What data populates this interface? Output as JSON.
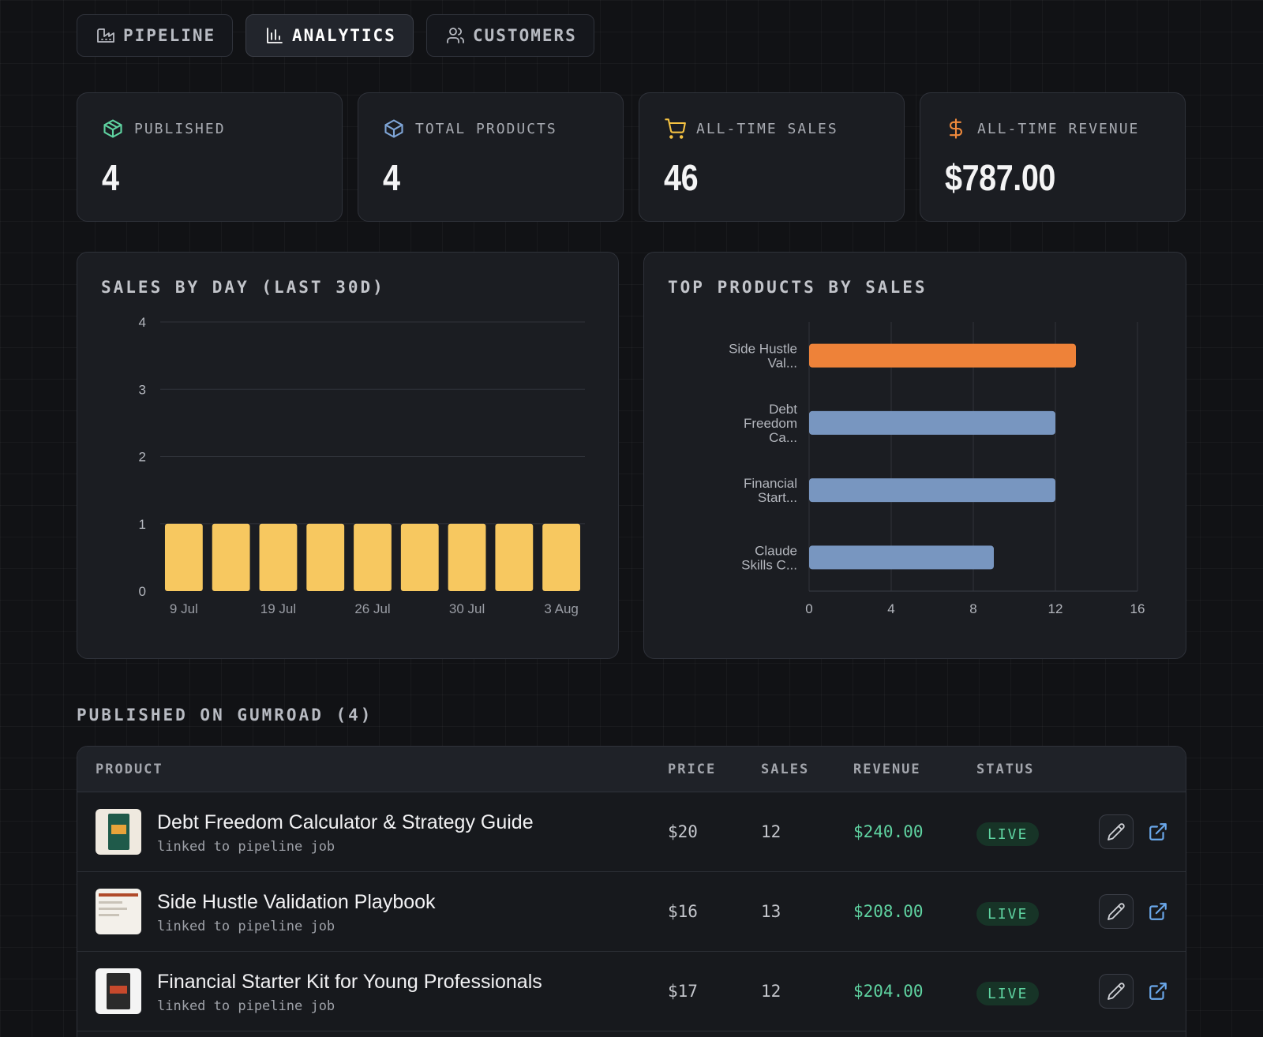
{
  "tabs": [
    {
      "label": "PIPELINE",
      "icon": "factory-icon",
      "active": false
    },
    {
      "label": "ANALYTICS",
      "icon": "bar-chart-icon",
      "active": true
    },
    {
      "label": "CUSTOMERS",
      "icon": "users-icon",
      "active": false
    }
  ],
  "stats": [
    {
      "label": "PUBLISHED",
      "value": "4",
      "icon": "package-check-icon",
      "color": "#5fd3a1"
    },
    {
      "label": "TOTAL PRODUCTS",
      "value": "4",
      "icon": "package-icon",
      "color": "#7fa6d8"
    },
    {
      "label": "ALL-TIME SALES",
      "value": "46",
      "icon": "cart-icon",
      "color": "#f5c242"
    },
    {
      "label": "ALL-TIME REVENUE",
      "value": "$787.00",
      "icon": "dollar-icon",
      "color": "#f08a3c"
    }
  ],
  "panels": {
    "sales_by_day_title": "SALES BY DAY (LAST 30D)",
    "top_products_title": "TOP PRODUCTS BY SALES"
  },
  "chart_data": [
    {
      "type": "bar",
      "title": "SALES BY DAY (LAST 30D)",
      "categories": [
        "9 Jul",
        "",
        "19 Jul",
        "",
        "26 Jul",
        "",
        "30 Jul",
        "",
        "3 Aug"
      ],
      "x_tick_labels": [
        "9 Jul",
        "19 Jul",
        "26 Jul",
        "30 Jul",
        "3 Aug"
      ],
      "values": [
        1,
        1,
        1,
        1,
        1,
        1,
        1,
        1,
        1
      ],
      "ylim": [
        0,
        4
      ],
      "yticks": [
        0,
        1,
        2,
        3,
        4
      ],
      "grid": true,
      "color": "#f7c860"
    },
    {
      "type": "bar",
      "orientation": "horizontal",
      "title": "TOP PRODUCTS BY SALES",
      "categories": [
        [
          "Side Hustle",
          "Val..."
        ],
        [
          "Debt",
          "Freedom",
          "Ca..."
        ],
        [
          "Financial",
          "Start..."
        ],
        [
          "Claude",
          "Skills C..."
        ]
      ],
      "values": [
        13,
        12,
        12,
        9
      ],
      "xlim": [
        0,
        16
      ],
      "xticks": [
        0,
        4,
        8,
        12,
        16
      ],
      "grid": true,
      "colors": [
        "#ee8239",
        "#7896c0",
        "#7896c0",
        "#7896c0"
      ]
    }
  ],
  "table": {
    "section_title": "PUBLISHED ON GUMROAD (4)",
    "headers": {
      "product": "PRODUCT",
      "price": "PRICE",
      "sales": "SALES",
      "revenue": "REVENUE",
      "status": "STATUS"
    },
    "rows": [
      {
        "name": "Debt Freedom Calculator & Strategy Guide",
        "sub": "linked to pipeline job",
        "price": "$20",
        "sales": "12",
        "revenue": "$240.00",
        "status": "LIVE"
      },
      {
        "name": "Side Hustle Validation Playbook",
        "sub": "linked to pipeline job",
        "price": "$16",
        "sales": "13",
        "revenue": "$208.00",
        "status": "LIVE"
      },
      {
        "name": "Financial Starter Kit for Young Professionals",
        "sub": "linked to pipeline job",
        "price": "$17",
        "sales": "12",
        "revenue": "$204.00",
        "status": "LIVE"
      }
    ]
  }
}
